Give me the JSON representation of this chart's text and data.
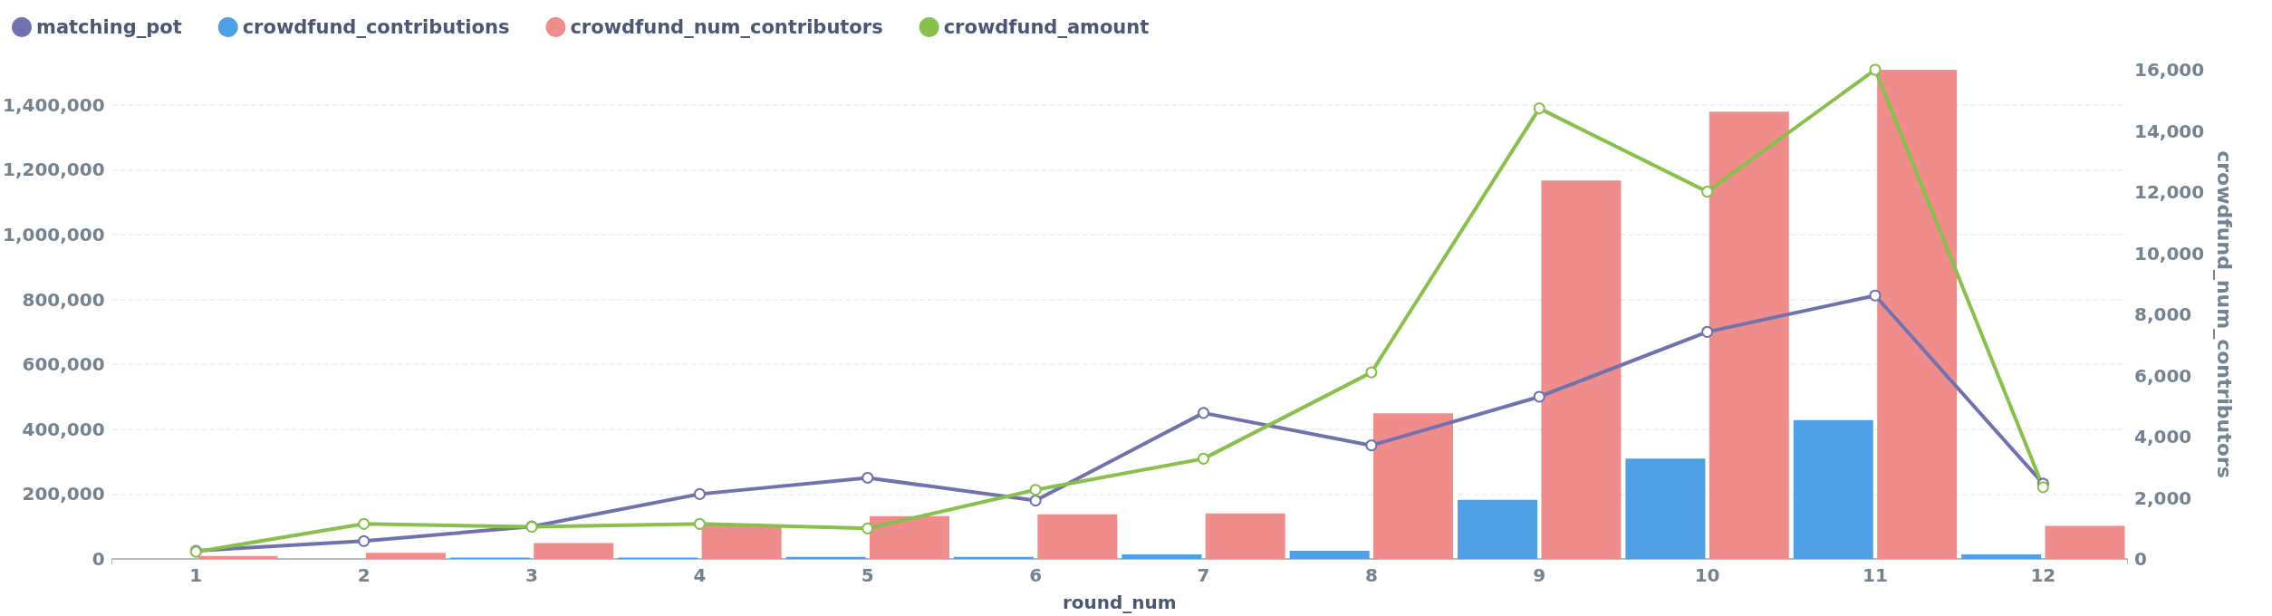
{
  "chart_data": {
    "type": "bar",
    "xlabel": "round_num",
    "y2label": "crowdfund_num_contributors",
    "categories": [
      "1",
      "2",
      "3",
      "4",
      "5",
      "6",
      "7",
      "8",
      "9",
      "10",
      "11",
      "12"
    ],
    "series": [
      {
        "name": "matching_pot",
        "type": "line",
        "color": "#7172ad",
        "values": [
          25000,
          55000,
          100000,
          200000,
          250000,
          180000,
          450000,
          350000,
          500000,
          700000,
          812000,
          232000
        ]
      },
      {
        "name": "crowdfund_contributions",
        "color": "#509ee3",
        "values": [
          0,
          0,
          4000,
          4000,
          6000,
          6000,
          14000,
          25000,
          182000,
          309000,
          428000,
          14000
        ]
      },
      {
        "name": "crowdfund_num_contributors",
        "axis": "y2",
        "color": "#ef8c8c",
        "values": [
          100,
          200,
          520,
          1110,
          1400,
          1460,
          1490,
          4760,
          12380,
          14630,
          16000,
          1080
        ]
      },
      {
        "name": "crowdfund_amount",
        "type": "line",
        "color": "#88bf4d",
        "values": [
          22000,
          108000,
          99000,
          108000,
          94000,
          213000,
          309000,
          575000,
          1389000,
          1132000,
          1508000,
          221000
        ]
      }
    ],
    "ylim": [
      0,
      1508000
    ],
    "yticks": [
      0,
      {
        "value": 200000,
        "label": "200,000"
      },
      {
        "value": 400000,
        "label": "400,000"
      },
      {
        "value": 600000,
        "label": "600,000"
      },
      {
        "value": 800000,
        "label": "800,000"
      },
      {
        "value": 1000000,
        "label": "1,000,000"
      },
      {
        "value": 1200000,
        "label": "1,200,000"
      },
      {
        "value": 1400000,
        "label": "1,400,000"
      }
    ],
    "y2lim": [
      0,
      16000
    ],
    "y2ticks": [
      0,
      {
        "value": 2000,
        "label": "2,000"
      },
      {
        "value": 4000,
        "label": "4,000"
      },
      {
        "value": 6000,
        "label": "6,000"
      },
      {
        "value": 8000,
        "label": "8,000"
      },
      {
        "value": 10000,
        "label": "10,000"
      },
      {
        "value": 12000,
        "label": "12,000"
      },
      {
        "value": 14000,
        "label": "14,000"
      },
      {
        "value": 16000,
        "label": "16,000"
      }
    ],
    "grid": "y",
    "legend": "top left",
    "marker": "circle",
    "line_style": "solid"
  }
}
